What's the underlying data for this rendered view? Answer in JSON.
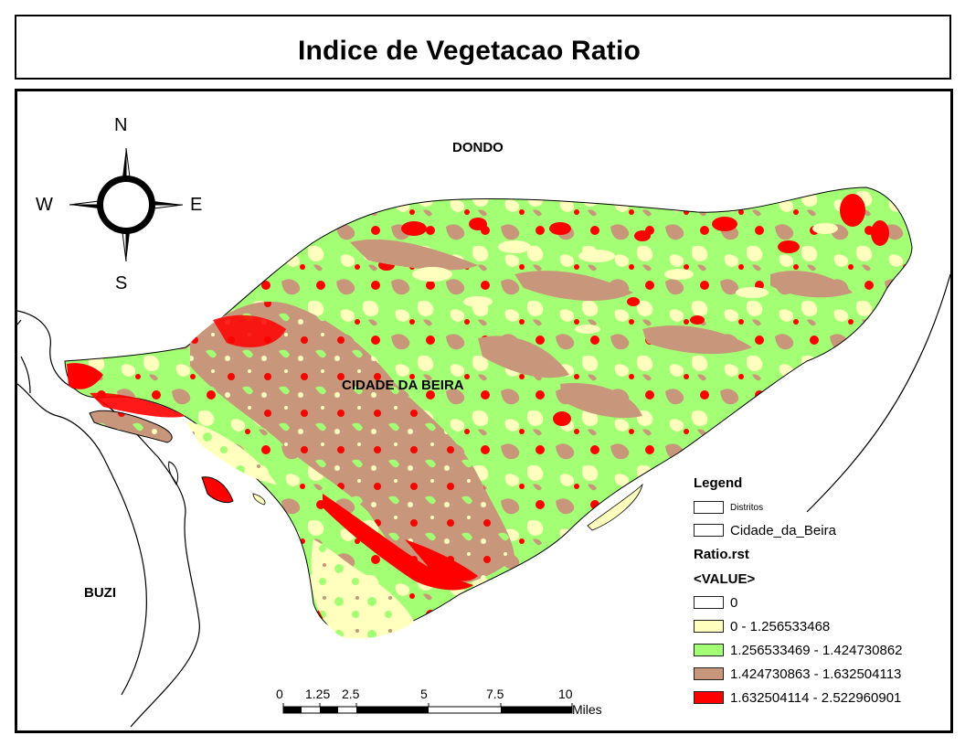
{
  "title": "Indice de Vegetacao Ratio",
  "place_labels": {
    "dondo": "DONDO",
    "cidade": "CIDADE DA BEIRA",
    "buzi": "BUZI"
  },
  "compass": {
    "n": "N",
    "s": "S",
    "e": "E",
    "w": "W"
  },
  "legend": {
    "title": "Legend",
    "layers": [
      {
        "label": "Distritos",
        "color": "#ffffff"
      },
      {
        "label": "Cidade_da_Beira",
        "color": "#ffffff"
      }
    ],
    "raster_name": "Ratio.rst",
    "field": "<VALUE>",
    "classes": [
      {
        "label": "0",
        "color": "#ffffff"
      },
      {
        "label": "0 - 1.256533468",
        "color": "#ffffbe"
      },
      {
        "label": "1.256533469 - 1.424730862",
        "color": "#a3ff73"
      },
      {
        "label": "1.424730863 - 1.632504113",
        "color": "#c8967a"
      },
      {
        "label": "1.632504114 - 2.522960901",
        "color": "#ff0000"
      }
    ]
  },
  "scale_bar": {
    "ticks": [
      "0",
      "1.25",
      "2.5",
      "5",
      "7.5",
      "10"
    ],
    "unit": "Miles"
  }
}
